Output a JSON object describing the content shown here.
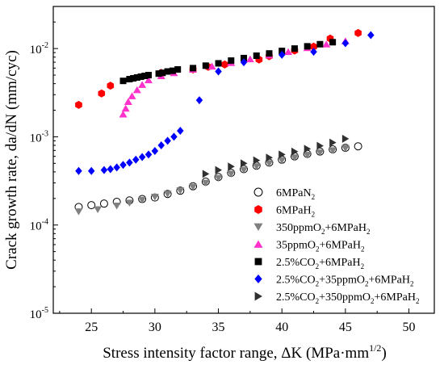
{
  "chart_data": {
    "type": "scatter",
    "xlabel": "Stress intensity factor range, ΔK (MPa·mm",
    "xlabel_sup": "1/2",
    "xlabel_close": ")",
    "ylabel": "Crack growth rate, da/dN (mm/cyc)",
    "x_scale": "linear",
    "y_scale": "log",
    "xlim": [
      22,
      52
    ],
    "ylim": [
      1e-05,
      0.03
    ],
    "x_ticks": [
      {
        "value": 25,
        "label": "25"
      },
      {
        "value": 30,
        "label": "30"
      },
      {
        "value": 35,
        "label": "35"
      },
      {
        "value": 40,
        "label": "40"
      },
      {
        "value": 45,
        "label": "45"
      },
      {
        "value": 50,
        "label": "50"
      }
    ],
    "y_ticks": [
      {
        "value": 1e-05,
        "base": "10",
        "exp": "-5"
      },
      {
        "value": 0.0001,
        "base": "10",
        "exp": "-4"
      },
      {
        "value": 0.001,
        "base": "10",
        "exp": "-3"
      },
      {
        "value": 0.01,
        "base": "10",
        "exp": "-2"
      }
    ],
    "grid": false,
    "legend_position": "bottom-right",
    "series": [
      {
        "name": "6MPaN2",
        "label_main": "6MPaN",
        "label_sub": "2",
        "label_tail": "",
        "marker": "circle-open",
        "color": "#000000",
        "x": [
          24,
          25,
          26,
          27,
          28,
          29,
          30,
          31,
          32,
          33,
          34,
          35,
          36,
          37,
          38,
          39,
          40,
          41,
          42,
          43,
          44,
          45,
          46
        ],
        "y": [
          0.00016,
          0.000168,
          0.000175,
          0.000183,
          0.00019,
          0.000197,
          0.000205,
          0.000225,
          0.000245,
          0.000275,
          0.00031,
          0.00035,
          0.00039,
          0.00043,
          0.00047,
          0.00051,
          0.00055,
          0.0006,
          0.00064,
          0.00068,
          0.00072,
          0.00075,
          0.00078
        ]
      },
      {
        "name": "6MPaH2",
        "label_main": "6MPaH",
        "label_sub": "2",
        "label_tail": "",
        "marker": "hexagon",
        "color": "#ff0000",
        "x": [
          24,
          25.8,
          26.5,
          30.5,
          33,
          34.2,
          35.5,
          38.2,
          39,
          41,
          42.5,
          43.8,
          46
        ],
        "y": [
          0.0023,
          0.0031,
          0.0038,
          0.0053,
          0.0058,
          0.0062,
          0.0066,
          0.0075,
          0.0082,
          0.0095,
          0.0105,
          0.013,
          0.015
        ]
      },
      {
        "name": "350ppmO2+6MPaH2",
        "label_main": "350ppmO",
        "label_sub": "2",
        "label_tail": "+6MPaH",
        "label_sub2": "2",
        "marker": "triangle-down",
        "color": "#808080",
        "x": [
          24,
          25.5,
          27,
          28,
          29,
          30,
          31,
          32,
          33,
          34,
          35,
          36,
          37,
          38,
          39,
          40,
          41,
          42,
          43,
          44,
          45
        ],
        "y": [
          0.000142,
          0.00015,
          0.000165,
          0.000178,
          0.000192,
          0.000208,
          0.000225,
          0.000245,
          0.00027,
          0.0003,
          0.00034,
          0.00038,
          0.00042,
          0.00046,
          0.0005,
          0.00054,
          0.00058,
          0.00062,
          0.00066,
          0.0007,
          0.00074
        ]
      },
      {
        "name": "35ppmO2+6MPaH2",
        "label_main": "35ppmO",
        "label_sub": "2",
        "label_tail": "+6MPaH",
        "label_sub2": "2",
        "marker": "triangle-up",
        "color": "#ff33cc",
        "x": [
          27.5,
          27.7,
          27.9,
          28.2,
          28.6,
          29,
          29.5,
          30.5,
          31.5,
          33,
          34.5,
          36,
          37.5,
          39,
          40.5,
          42,
          43.5,
          45
        ],
        "y": [
          0.0018,
          0.0021,
          0.0025,
          0.0029,
          0.0034,
          0.0039,
          0.0044,
          0.0049,
          0.0053,
          0.0058,
          0.0063,
          0.0069,
          0.0076,
          0.0084,
          0.0092,
          0.0102,
          0.0112,
          0.0122
        ]
      },
      {
        "name": "2.5%CO2+6MPaH2",
        "label_main": "2.5%CO",
        "label_sub": "2",
        "label_tail": "+6MPaH",
        "label_sub2": "2",
        "marker": "square",
        "color": "#000000",
        "x": [
          27.5,
          28,
          28.3,
          28.6,
          28.9,
          29.2,
          29.5,
          30.3,
          30.6,
          31,
          31.4,
          31.8,
          33,
          34,
          35,
          36,
          37,
          38,
          39,
          40,
          41,
          42,
          43,
          44
        ],
        "y": [
          0.0043,
          0.0045,
          0.0046,
          0.0047,
          0.0048,
          0.0049,
          0.005,
          0.0052,
          0.0053,
          0.0055,
          0.0056,
          0.0058,
          0.006,
          0.0064,
          0.0068,
          0.0073,
          0.0078,
          0.0083,
          0.0088,
          0.0094,
          0.01,
          0.0106,
          0.0112,
          0.0118
        ]
      },
      {
        "name": "2.5%CO2+35ppmO2+6MPaH2",
        "label_main": "2.5%CO",
        "label_sub": "2",
        "label_tail": "+35ppmO",
        "label_sub2": "2",
        "label_tail2": "+6MPaH",
        "label_sub3": "2",
        "marker": "diamond",
        "color": "#0000ff",
        "x": [
          24,
          25,
          26,
          26.5,
          27,
          27.5,
          28,
          28.5,
          29,
          29.5,
          30,
          30.5,
          31,
          31.5,
          32,
          33.5,
          35,
          37,
          40,
          42.5,
          45,
          47
        ],
        "y": [
          0.00041,
          0.00041,
          0.00042,
          0.00043,
          0.00045,
          0.00048,
          0.00051,
          0.00055,
          0.00059,
          0.00063,
          0.00069,
          0.0008,
          0.0009,
          0.001,
          0.00117,
          0.0026,
          0.0055,
          0.007,
          0.0085,
          0.0092,
          0.0115,
          0.0142
        ]
      },
      {
        "name": "2.5%CO2+350ppmO2+6MPaH2",
        "label_main": "2.5%CO",
        "label_sub": "2",
        "label_tail": "+350ppmO",
        "label_sub2": "2",
        "label_tail2": "+6MPaH",
        "label_sub3": "2",
        "marker": "triangle-right",
        "color": "#303030",
        "x": [
          34,
          35,
          36,
          37,
          38,
          39,
          40,
          41,
          42,
          43,
          44,
          45
        ],
        "y": [
          0.00038,
          0.00042,
          0.00046,
          0.0005,
          0.00054,
          0.00058,
          0.00063,
          0.00068,
          0.00073,
          0.00079,
          0.00086,
          0.00095
        ]
      }
    ]
  }
}
